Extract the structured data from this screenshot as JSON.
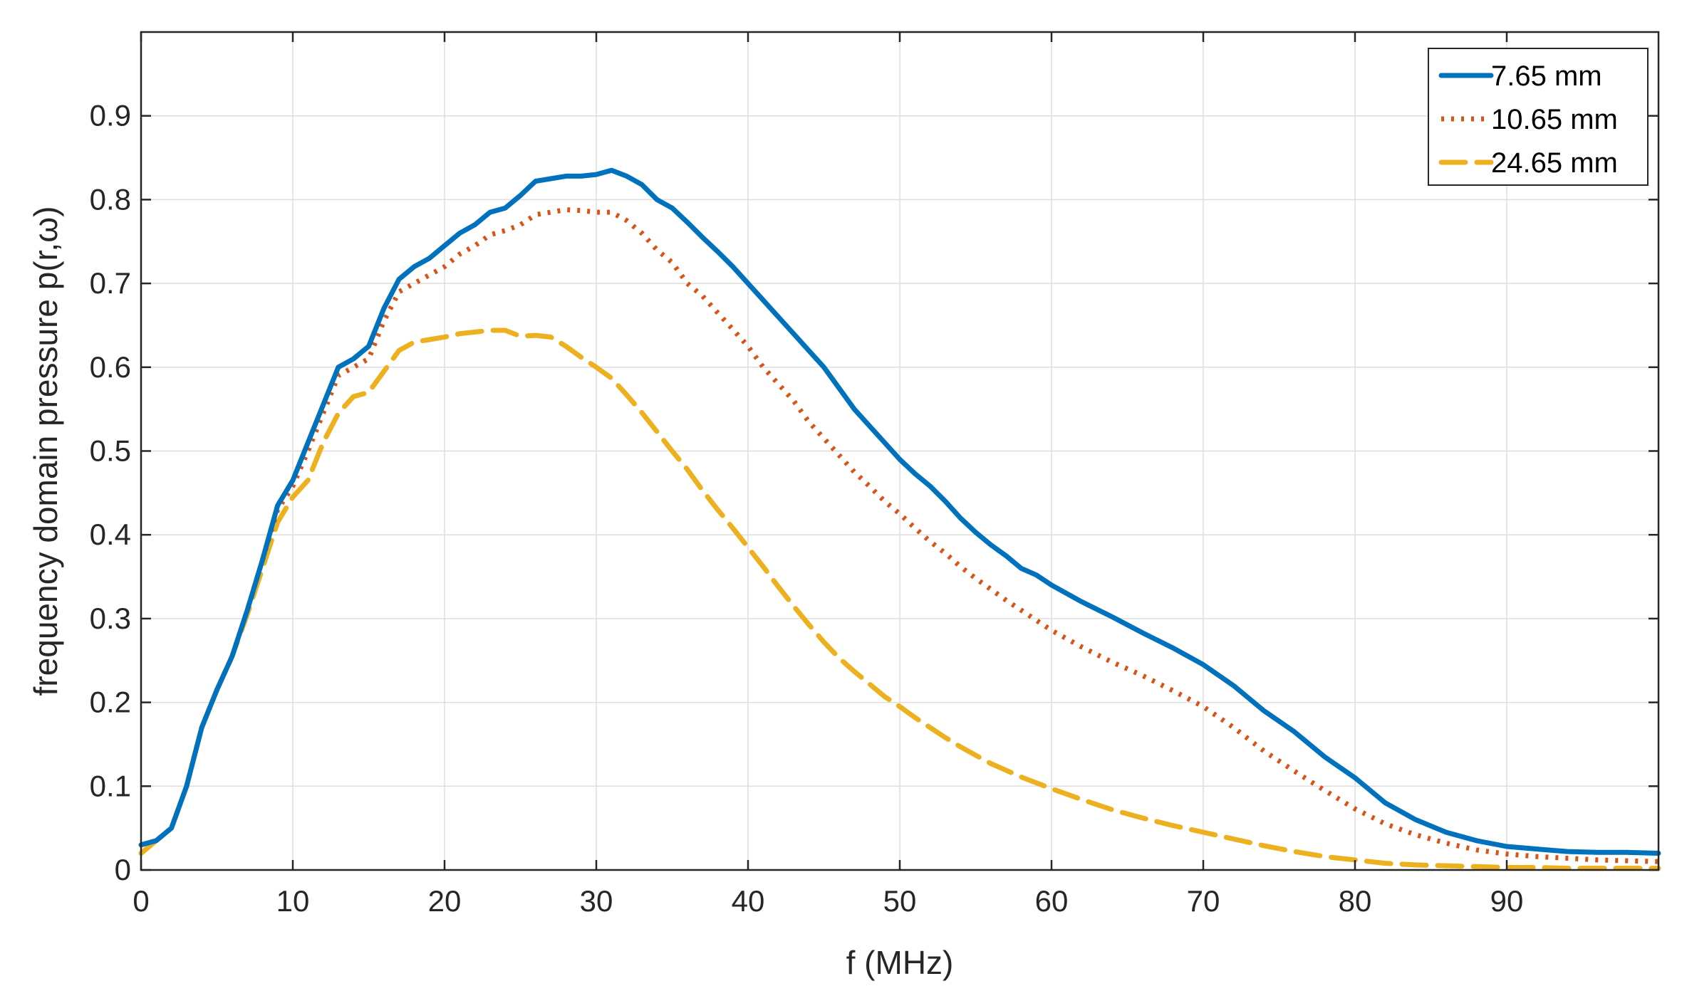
{
  "chart_data": {
    "type": "line",
    "title": "",
    "xlabel": "f (MHz)",
    "ylabel": "frequency domain pressure p(r,ω)",
    "xlim": [
      0,
      100
    ],
    "ylim": [
      0,
      1.0
    ],
    "xticks": [
      0,
      10,
      20,
      30,
      40,
      50,
      60,
      70,
      80,
      90
    ],
    "yticks": [
      0,
      0.1,
      0.2,
      0.3,
      0.4,
      0.5,
      0.6,
      0.7,
      0.8,
      0.9
    ],
    "xtick_labels": [
      "0",
      "10",
      "20",
      "30",
      "40",
      "50",
      "60",
      "70",
      "80",
      "90"
    ],
    "ytick_labels": [
      "0",
      "0.1",
      "0.2",
      "0.3",
      "0.4",
      "0.5",
      "0.6",
      "0.7",
      "0.8",
      "0.9"
    ],
    "grid": true,
    "legend_position": "top-right",
    "series": [
      {
        "name": "7.65 mm",
        "color": "#0072BD",
        "style": "solid",
        "x": [
          0,
          1,
          2,
          3,
          4,
          5,
          6,
          7,
          8,
          9,
          10,
          11,
          12,
          13,
          14,
          15,
          16,
          17,
          18,
          19,
          20,
          21,
          22,
          23,
          24,
          25,
          26,
          27,
          28,
          29,
          30,
          31,
          32,
          33,
          34,
          35,
          36,
          37,
          38,
          39,
          40,
          41,
          42,
          43,
          44,
          45,
          46,
          47,
          48,
          49,
          50,
          51,
          52,
          53,
          54,
          55,
          56,
          57,
          58,
          59,
          60,
          62,
          64,
          66,
          68,
          70,
          72,
          74,
          76,
          78,
          80,
          82,
          84,
          86,
          88,
          90,
          92,
          94,
          96,
          98,
          100
        ],
        "y": [
          0.03,
          0.035,
          0.05,
          0.1,
          0.17,
          0.215,
          0.255,
          0.31,
          0.37,
          0.435,
          0.465,
          0.51,
          0.555,
          0.6,
          0.61,
          0.625,
          0.67,
          0.705,
          0.72,
          0.73,
          0.745,
          0.76,
          0.77,
          0.785,
          0.79,
          0.805,
          0.822,
          0.825,
          0.828,
          0.828,
          0.83,
          0.835,
          0.828,
          0.818,
          0.8,
          0.79,
          0.773,
          0.755,
          0.738,
          0.72,
          0.7,
          0.68,
          0.66,
          0.64,
          0.62,
          0.6,
          0.575,
          0.55,
          0.53,
          0.51,
          0.49,
          0.473,
          0.458,
          0.44,
          0.42,
          0.403,
          0.388,
          0.375,
          0.36,
          0.352,
          0.34,
          0.32,
          0.302,
          0.283,
          0.265,
          0.245,
          0.22,
          0.19,
          0.165,
          0.135,
          0.11,
          0.08,
          0.06,
          0.045,
          0.035,
          0.028,
          0.025,
          0.022,
          0.021,
          0.021,
          0.02
        ]
      },
      {
        "name": "10.65 mm",
        "color": "#D95319",
        "style": "dotted",
        "x": [
          0,
          1,
          2,
          3,
          4,
          5,
          6,
          7,
          8,
          9,
          10,
          11,
          12,
          13,
          14,
          15,
          16,
          17,
          18,
          19,
          20,
          21,
          22,
          23,
          24,
          25,
          26,
          27,
          28,
          29,
          30,
          31,
          32,
          33,
          34,
          35,
          36,
          37,
          38,
          39,
          40,
          41,
          42,
          43,
          44,
          45,
          46,
          47,
          48,
          49,
          50,
          51,
          52,
          53,
          54,
          55,
          56,
          57,
          58,
          59,
          60,
          62,
          64,
          66,
          68,
          70,
          72,
          74,
          76,
          78,
          80,
          82,
          84,
          86,
          88,
          90,
          92,
          94,
          96,
          98,
          100
        ],
        "y": [
          0.03,
          0.035,
          0.05,
          0.1,
          0.17,
          0.215,
          0.255,
          0.31,
          0.37,
          0.43,
          0.458,
          0.5,
          0.545,
          0.59,
          0.6,
          0.61,
          0.655,
          0.69,
          0.7,
          0.71,
          0.72,
          0.735,
          0.745,
          0.758,
          0.763,
          0.77,
          0.782,
          0.785,
          0.788,
          0.787,
          0.785,
          0.785,
          0.775,
          0.76,
          0.74,
          0.725,
          0.7,
          0.685,
          0.665,
          0.645,
          0.625,
          0.6,
          0.58,
          0.56,
          0.535,
          0.515,
          0.495,
          0.475,
          0.458,
          0.44,
          0.425,
          0.408,
          0.392,
          0.378,
          0.362,
          0.348,
          0.335,
          0.322,
          0.31,
          0.298,
          0.286,
          0.266,
          0.248,
          0.232,
          0.214,
          0.195,
          0.17,
          0.142,
          0.118,
          0.095,
          0.073,
          0.055,
          0.042,
          0.032,
          0.024,
          0.019,
          0.016,
          0.014,
          0.012,
          0.011,
          0.01
        ]
      },
      {
        "name": "24.65 mm",
        "color": "#EDB120",
        "style": "dashed",
        "x": [
          0,
          1,
          2,
          3,
          4,
          5,
          6,
          7,
          8,
          9,
          10,
          11,
          12,
          13,
          14,
          15,
          16,
          17,
          18,
          19,
          20,
          21,
          22,
          23,
          24,
          25,
          26,
          27,
          28,
          29,
          30,
          31,
          32,
          33,
          34,
          35,
          36,
          37,
          38,
          39,
          40,
          41,
          42,
          43,
          44,
          45,
          46,
          47,
          48,
          49,
          50,
          51,
          52,
          53,
          54,
          55,
          56,
          57,
          58,
          59,
          60,
          62,
          64,
          66,
          68,
          70,
          72,
          74,
          76,
          78,
          80,
          82,
          84,
          86,
          88,
          90,
          92,
          94,
          96,
          98,
          100
        ],
        "y": [
          0.02,
          0.035,
          0.05,
          0.1,
          0.17,
          0.215,
          0.255,
          0.305,
          0.36,
          0.415,
          0.445,
          0.465,
          0.51,
          0.545,
          0.565,
          0.57,
          0.595,
          0.62,
          0.63,
          0.633,
          0.636,
          0.64,
          0.642,
          0.644,
          0.644,
          0.637,
          0.638,
          0.636,
          0.625,
          0.612,
          0.6,
          0.587,
          0.567,
          0.546,
          0.523,
          0.5,
          0.478,
          0.453,
          0.43,
          0.408,
          0.385,
          0.362,
          0.338,
          0.315,
          0.293,
          0.272,
          0.253,
          0.237,
          0.222,
          0.207,
          0.195,
          0.182,
          0.17,
          0.158,
          0.147,
          0.137,
          0.127,
          0.119,
          0.111,
          0.104,
          0.097,
          0.084,
          0.072,
          0.062,
          0.053,
          0.045,
          0.037,
          0.029,
          0.022,
          0.016,
          0.012,
          0.008,
          0.006,
          0.005,
          0.004,
          0.003,
          0.003,
          0.002,
          0.002,
          0.002,
          0.002
        ]
      }
    ]
  }
}
